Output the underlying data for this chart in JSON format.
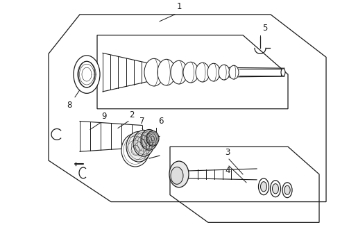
{
  "bg_color": "#ffffff",
  "line_color": "#1a1a1a",
  "figsize": [
    4.9,
    3.6
  ],
  "dpi": 100,
  "label_fontsize": 8.5,
  "lw": 0.9
}
